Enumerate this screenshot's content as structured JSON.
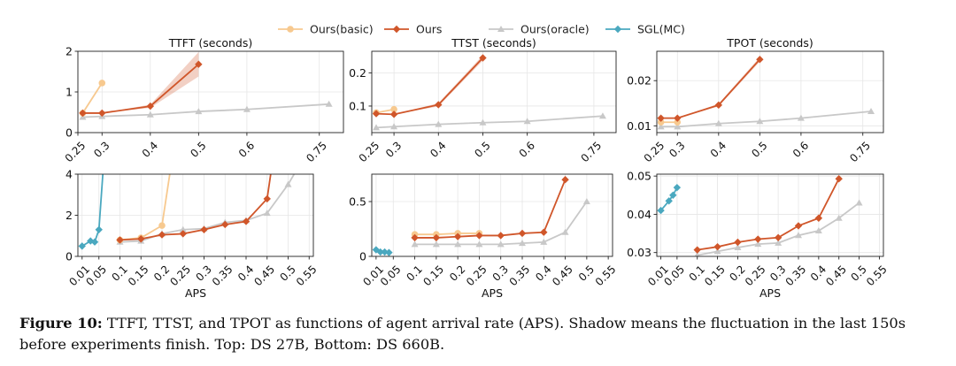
{
  "legend": [
    {
      "name": "Ours(basic)",
      "color": "#f7c98f",
      "marker": "circle"
    },
    {
      "name": "Ours",
      "color": "#d0562a",
      "marker": "diamond"
    },
    {
      "name": "Ours(oracle)",
      "color": "#c8c8c8",
      "marker": "triangle"
    },
    {
      "name": "SGL(MC)",
      "color": "#4aa8bf",
      "marker": "diamond"
    }
  ],
  "caption": {
    "label": "Figure 10:",
    "text": " TTFT, TTST, and TPOT as functions of agent arrival rate (APS). Shadow means the fluctuation in the last 150s before experiments finish. Top: DS 27B, Bottom: DS 660B."
  },
  "chart_data": [
    {
      "id": "top-ttft",
      "type": "line",
      "title": "TTFT (seconds)",
      "xlabel": "",
      "xlim": [
        0.25,
        0.8
      ],
      "ylim": [
        0,
        2
      ],
      "xticks": [
        0.25,
        0.3,
        0.4,
        0.5,
        0.6,
        0.75
      ],
      "yticks": [
        0,
        1,
        2
      ],
      "series": [
        {
          "name": "Ours(basic)",
          "x": [
            0.26,
            0.3
          ],
          "y": [
            0.48,
            1.22
          ]
        },
        {
          "name": "Ours",
          "x": [
            0.26,
            0.3,
            0.4,
            0.5
          ],
          "y": [
            0.48,
            0.48,
            0.65,
            1.68
          ],
          "band": [
            0,
            0,
            0.04,
            0.3
          ]
        },
        {
          "name": "Ours(oracle)",
          "x": [
            0.26,
            0.3,
            0.4,
            0.5,
            0.6,
            0.77
          ],
          "y": [
            0.38,
            0.4,
            0.44,
            0.52,
            0.57,
            0.7
          ]
        }
      ]
    },
    {
      "id": "top-ttst",
      "type": "line",
      "title": "TTST (seconds)",
      "xlabel": "",
      "xlim": [
        0.25,
        0.8
      ],
      "ylim": [
        0.02,
        0.265
      ],
      "xticks": [
        0.25,
        0.3,
        0.4,
        0.5,
        0.6,
        0.75
      ],
      "yticks": [
        0.1,
        0.2
      ],
      "series": [
        {
          "name": "Ours(basic)",
          "x": [
            0.26,
            0.3
          ],
          "y": [
            0.08,
            0.09
          ]
        },
        {
          "name": "Ours",
          "x": [
            0.26,
            0.3,
            0.4,
            0.5
          ],
          "y": [
            0.077,
            0.075,
            0.104,
            0.245
          ],
          "band": [
            0,
            0,
            0.005,
            0.008
          ]
        },
        {
          "name": "Ours(oracle)",
          "x": [
            0.26,
            0.3,
            0.4,
            0.5,
            0.6,
            0.77
          ],
          "y": [
            0.035,
            0.038,
            0.045,
            0.05,
            0.054,
            0.07
          ]
        }
      ]
    },
    {
      "id": "top-tpot",
      "type": "line",
      "title": "TPOT (seconds)",
      "xlabel": "",
      "xlim": [
        0.25,
        0.8
      ],
      "ylim": [
        0.0085,
        0.0265
      ],
      "xticks": [
        0.25,
        0.3,
        0.4,
        0.5,
        0.6,
        0.75
      ],
      "yticks": [
        0.01,
        0.02
      ],
      "series": [
        {
          "name": "Ours(basic)",
          "x": [
            0.26,
            0.3
          ],
          "y": [
            0.0108,
            0.0108
          ]
        },
        {
          "name": "Ours",
          "x": [
            0.26,
            0.3,
            0.4,
            0.5
          ],
          "y": [
            0.0117,
            0.0117,
            0.0146,
            0.0247
          ],
          "band": [
            0,
            0,
            0.0003,
            0.0005
          ]
        },
        {
          "name": "Ours(oracle)",
          "x": [
            0.26,
            0.3,
            0.4,
            0.5,
            0.6,
            0.77
          ],
          "y": [
            0.0098,
            0.0098,
            0.0105,
            0.011,
            0.0117,
            0.0132
          ]
        }
      ]
    },
    {
      "id": "bottom-ttft",
      "type": "line",
      "title": "",
      "xlabel": "APS",
      "xlim": [
        0.0,
        0.56
      ],
      "ylim": [
        0,
        4
      ],
      "xticks": [
        0.01,
        0.05,
        0.1,
        0.15,
        0.2,
        0.25,
        0.3,
        0.35,
        0.4,
        0.45,
        0.5,
        0.55
      ],
      "yticks": [
        0,
        2,
        4
      ],
      "series": [
        {
          "name": "Ours(basic)",
          "x": [
            0.1,
            0.15,
            0.2,
            0.22
          ],
          "y": [
            0.8,
            0.9,
            1.5,
            4.2
          ]
        },
        {
          "name": "Ours",
          "x": [
            0.1,
            0.15,
            0.2,
            0.25,
            0.3,
            0.35,
            0.4,
            0.45,
            0.46
          ],
          "y": [
            0.8,
            0.85,
            1.05,
            1.1,
            1.3,
            1.55,
            1.7,
            2.8,
            4.2
          ]
        },
        {
          "name": "Ours(oracle)",
          "x": [
            0.1,
            0.15,
            0.2,
            0.25,
            0.3,
            0.35,
            0.4,
            0.45,
            0.5,
            0.52
          ],
          "y": [
            0.7,
            0.75,
            1.1,
            1.3,
            1.35,
            1.65,
            1.75,
            2.1,
            3.5,
            4.2
          ]
        },
        {
          "name": "SGL(MC)",
          "x": [
            0.01,
            0.03,
            0.04,
            0.05,
            0.06
          ],
          "y": [
            0.5,
            0.75,
            0.7,
            1.3,
            4.2
          ]
        }
      ]
    },
    {
      "id": "bottom-ttst",
      "type": "line",
      "title": "",
      "xlabel": "APS",
      "xlim": [
        0.0,
        0.56
      ],
      "ylim": [
        0,
        0.75
      ],
      "xticks": [
        0.01,
        0.05,
        0.1,
        0.15,
        0.2,
        0.25,
        0.3,
        0.35,
        0.4,
        0.45,
        0.5,
        0.55
      ],
      "yticks": [
        0,
        0.5
      ],
      "series": [
        {
          "name": "Ours(basic)",
          "x": [
            0.1,
            0.15,
            0.2,
            0.25
          ],
          "y": [
            0.2,
            0.2,
            0.21,
            0.21
          ]
        },
        {
          "name": "Ours",
          "x": [
            0.1,
            0.15,
            0.2,
            0.25,
            0.3,
            0.35,
            0.4,
            0.45
          ],
          "y": [
            0.17,
            0.17,
            0.18,
            0.19,
            0.19,
            0.21,
            0.22,
            0.7
          ]
        },
        {
          "name": "Ours(oracle)",
          "x": [
            0.1,
            0.15,
            0.2,
            0.25,
            0.3,
            0.35,
            0.4,
            0.45,
            0.5
          ],
          "y": [
            0.11,
            0.11,
            0.11,
            0.11,
            0.11,
            0.12,
            0.13,
            0.22,
            0.5
          ]
        },
        {
          "name": "SGL(MC)",
          "x": [
            0.01,
            0.02,
            0.03,
            0.04
          ],
          "y": [
            0.06,
            0.04,
            0.04,
            0.035
          ]
        }
      ]
    },
    {
      "id": "bottom-tpot",
      "type": "line",
      "title": "",
      "xlabel": "APS",
      "xlim": [
        0.0,
        0.56
      ],
      "ylim": [
        0.029,
        0.0505
      ],
      "xticks": [
        0.01,
        0.05,
        0.1,
        0.15,
        0.2,
        0.25,
        0.3,
        0.35,
        0.4,
        0.45,
        0.5,
        0.55
      ],
      "yticks": [
        0.03,
        0.04,
        0.05
      ],
      "series": [
        {
          "name": "Ours",
          "x": [
            0.1,
            0.15,
            0.2,
            0.25,
            0.3,
            0.35,
            0.4,
            0.45
          ],
          "y": [
            0.0307,
            0.0315,
            0.0327,
            0.0335,
            0.0339,
            0.037,
            0.039,
            0.0493
          ]
        },
        {
          "name": "Ours(oracle)",
          "x": [
            0.1,
            0.15,
            0.2,
            0.25,
            0.3,
            0.35,
            0.4,
            0.45,
            0.5
          ],
          "y": [
            0.0293,
            0.0303,
            0.0313,
            0.0322,
            0.0325,
            0.0345,
            0.0357,
            0.039,
            0.043
          ]
        },
        {
          "name": "SGL(MC)",
          "x": [
            0.01,
            0.03,
            0.04,
            0.05
          ],
          "y": [
            0.041,
            0.0435,
            0.045,
            0.047
          ]
        }
      ]
    }
  ]
}
